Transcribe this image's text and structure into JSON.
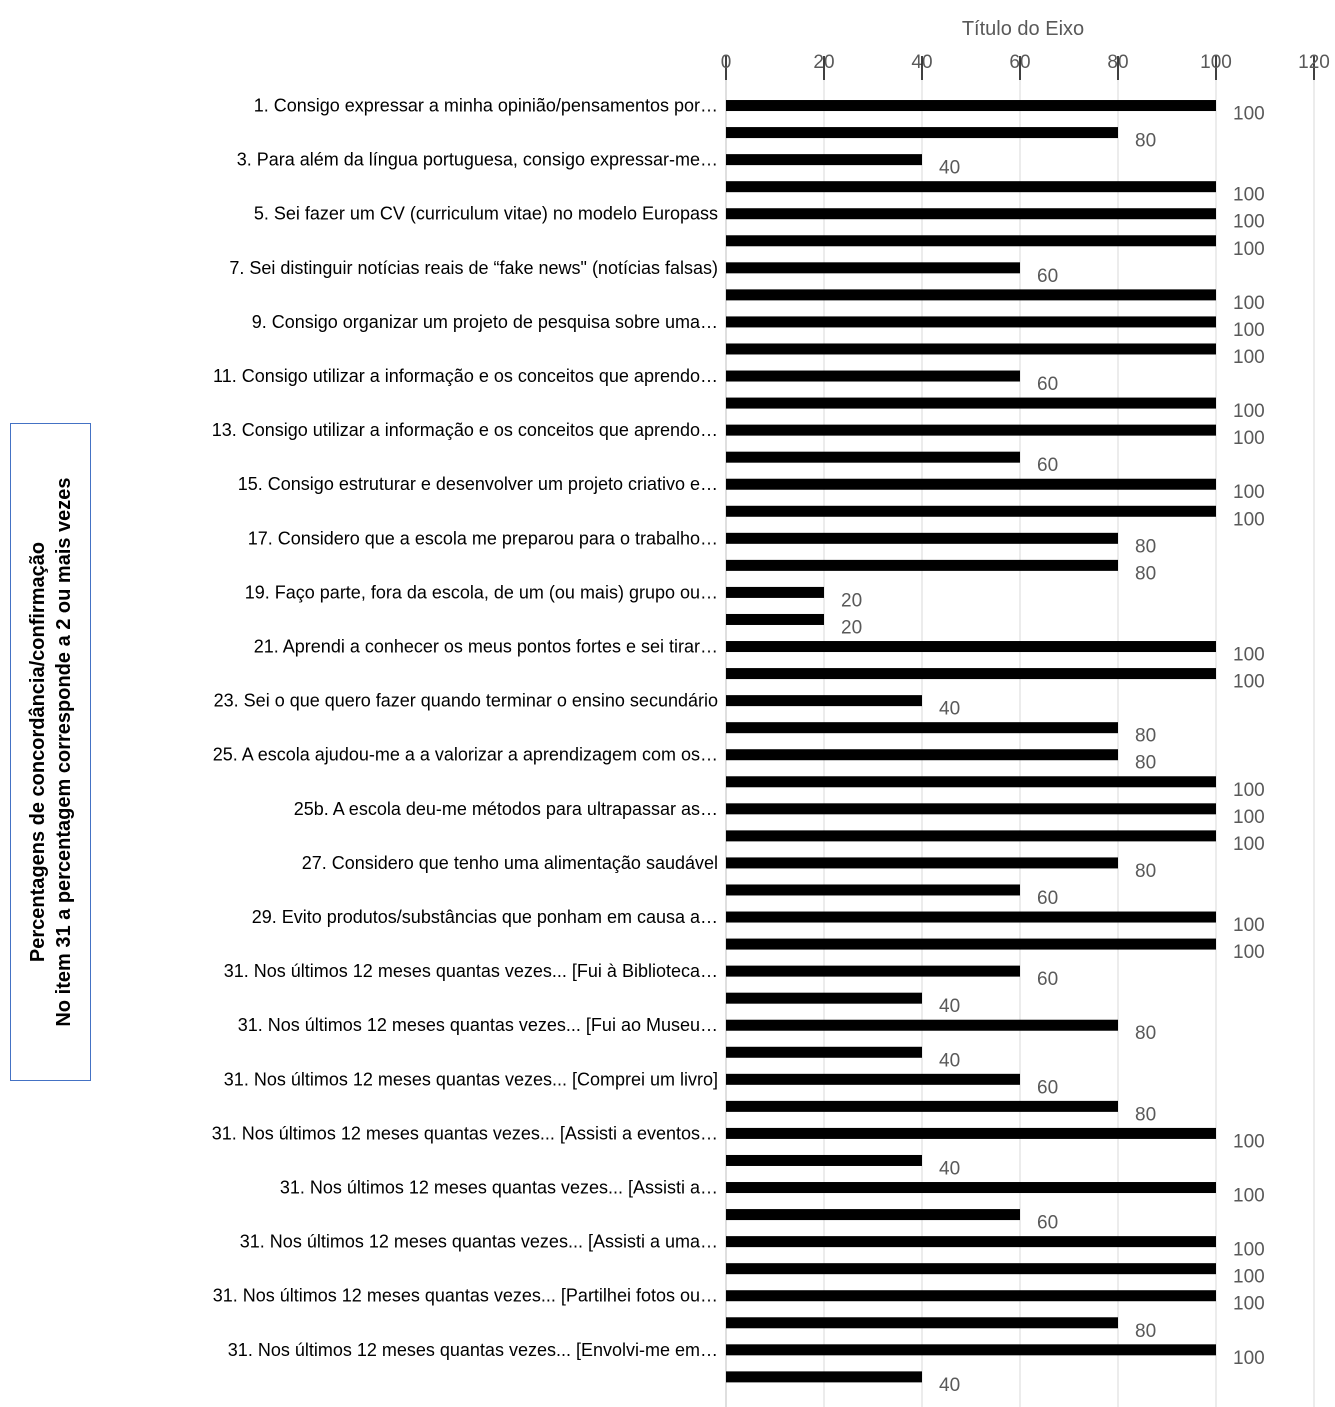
{
  "chart_data": {
    "type": "bar",
    "orientation": "horizontal",
    "x_axis_title": "Título do Eixo",
    "y_axis_title": [
      "Percentagens de concordância/confirmação",
      "No item 31  a percentagem corresponde a 2 ou mais vezes"
    ],
    "xlim": [
      0,
      120
    ],
    "ticks": [
      0,
      20,
      40,
      60,
      80,
      100,
      120
    ],
    "grid": true,
    "axis_position": "top",
    "bar_color": "#000000",
    "categories": [
      "1. Consigo expressar a minha opinião/pensamentos por…",
      "",
      "3. Para além da língua portuguesa, consigo expressar-me…",
      "",
      "5. Sei fazer um CV (curriculum vitae) no modelo Europass",
      "",
      "7. Sei distinguir notícias reais de “fake news\" (notícias falsas)",
      "",
      "9. Consigo organizar um projeto de pesquisa sobre uma…",
      "",
      "11. Consigo utilizar a informação e os conceitos que aprendo…",
      "",
      "13. Consigo utilizar a informação e os conceitos que aprendo…",
      "",
      "15. Consigo estruturar e desenvolver um projeto criativo e…",
      "",
      "17. Considero que a escola me preparou para o trabalho…",
      "",
      "19. Faço parte, fora da escola, de um (ou mais) grupo ou…",
      "",
      "21. Aprendi a conhecer os meus pontos fortes e sei tirar…",
      "",
      "23. Sei o que quero fazer quando terminar o ensino secundário",
      "",
      "25. A escola ajudou-me a a valorizar a aprendizagem com os…",
      "",
      "25b. A escola deu-me métodos para ultrapassar as…",
      "",
      "27. Considero que tenho uma alimentação saudável",
      "",
      "29. Evito produtos/substâncias que ponham em causa a…",
      "",
      "31. Nos últimos 12 meses quantas vezes... [Fui à Biblioteca…",
      "",
      "31. Nos últimos 12 meses quantas vezes... [Fui ao Museu…",
      "",
      "31. Nos últimos 12 meses quantas vezes... [Comprei um livro]",
      "",
      "31. Nos últimos 12 meses quantas vezes... [Assisti a eventos…",
      "",
      "31. Nos últimos 12 meses quantas vezes... [Assisti a…",
      "",
      "31. Nos últimos 12 meses quantas vezes... [Assisti a uma…",
      "",
      "31. Nos últimos 12 meses quantas vezes... [Partilhei fotos ou…",
      "",
      "31. Nos últimos 12 meses quantas vezes... [Envolvi-me em…",
      ""
    ],
    "values": [
      100,
      80,
      40,
      100,
      100,
      100,
      60,
      100,
      100,
      100,
      60,
      100,
      100,
      60,
      100,
      100,
      80,
      80,
      20,
      20,
      100,
      100,
      40,
      80,
      80,
      100,
      100,
      100,
      80,
      60,
      100,
      100,
      60,
      40,
      80,
      40,
      60,
      80,
      100,
      40,
      100,
      60,
      100,
      100,
      100,
      80,
      100,
      40
    ]
  }
}
